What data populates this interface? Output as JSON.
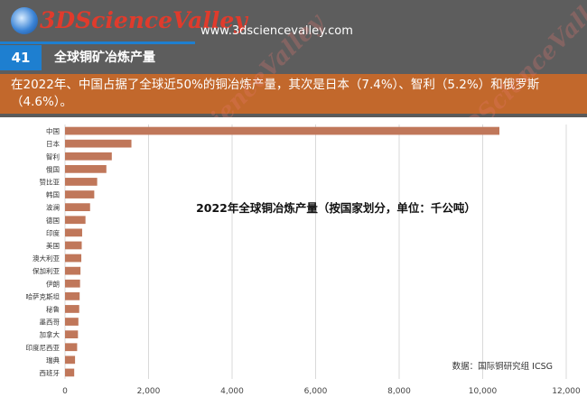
{
  "header": {
    "logo_text": "3DScienceValley",
    "url": "www.3dsciencevalley.com",
    "section_number": "41",
    "section_title": "全球铜矿冶炼产量"
  },
  "summary": "在2022年、中国占据了全球近50%的铜冶炼产量，其次是日本（7.4%）、智利（5.2%）和俄罗斯（4.6%）。",
  "colors": {
    "header_bg": "#5d5d5d",
    "accent_blue": "#1e7fd0",
    "summary_bg": "#c2682c",
    "bar": "#c0775a"
  },
  "chart_data": {
    "type": "bar",
    "orientation": "horizontal",
    "title": "2022年全球铜冶炼产量（按国家划分，单位：千公吨）",
    "source": "数据：国际铜研究组 ICSG",
    "categories": [
      "中国",
      "日本",
      "智利",
      "俄国",
      "赞比亚",
      "韩国",
      "波澜",
      "德国",
      "印度",
      "美国",
      "澳大利亚",
      "保加利亚",
      "伊朗",
      "哈萨克斯坦",
      "秘鲁",
      "墨西哥",
      "加拿大",
      "印度尼西亚",
      "瑞典",
      "西班牙"
    ],
    "values": [
      10400,
      1590,
      1120,
      990,
      770,
      700,
      600,
      490,
      410,
      400,
      390,
      370,
      360,
      350,
      340,
      320,
      310,
      290,
      240,
      220
    ],
    "xlim": [
      0,
      12000
    ],
    "xticks": [
      0,
      2000,
      4000,
      6000,
      8000,
      10000,
      12000
    ],
    "xtick_labels": [
      "0",
      "2,000",
      "4,000",
      "6,000",
      "8,000",
      "10,000",
      "12,000"
    ],
    "grid": true
  }
}
